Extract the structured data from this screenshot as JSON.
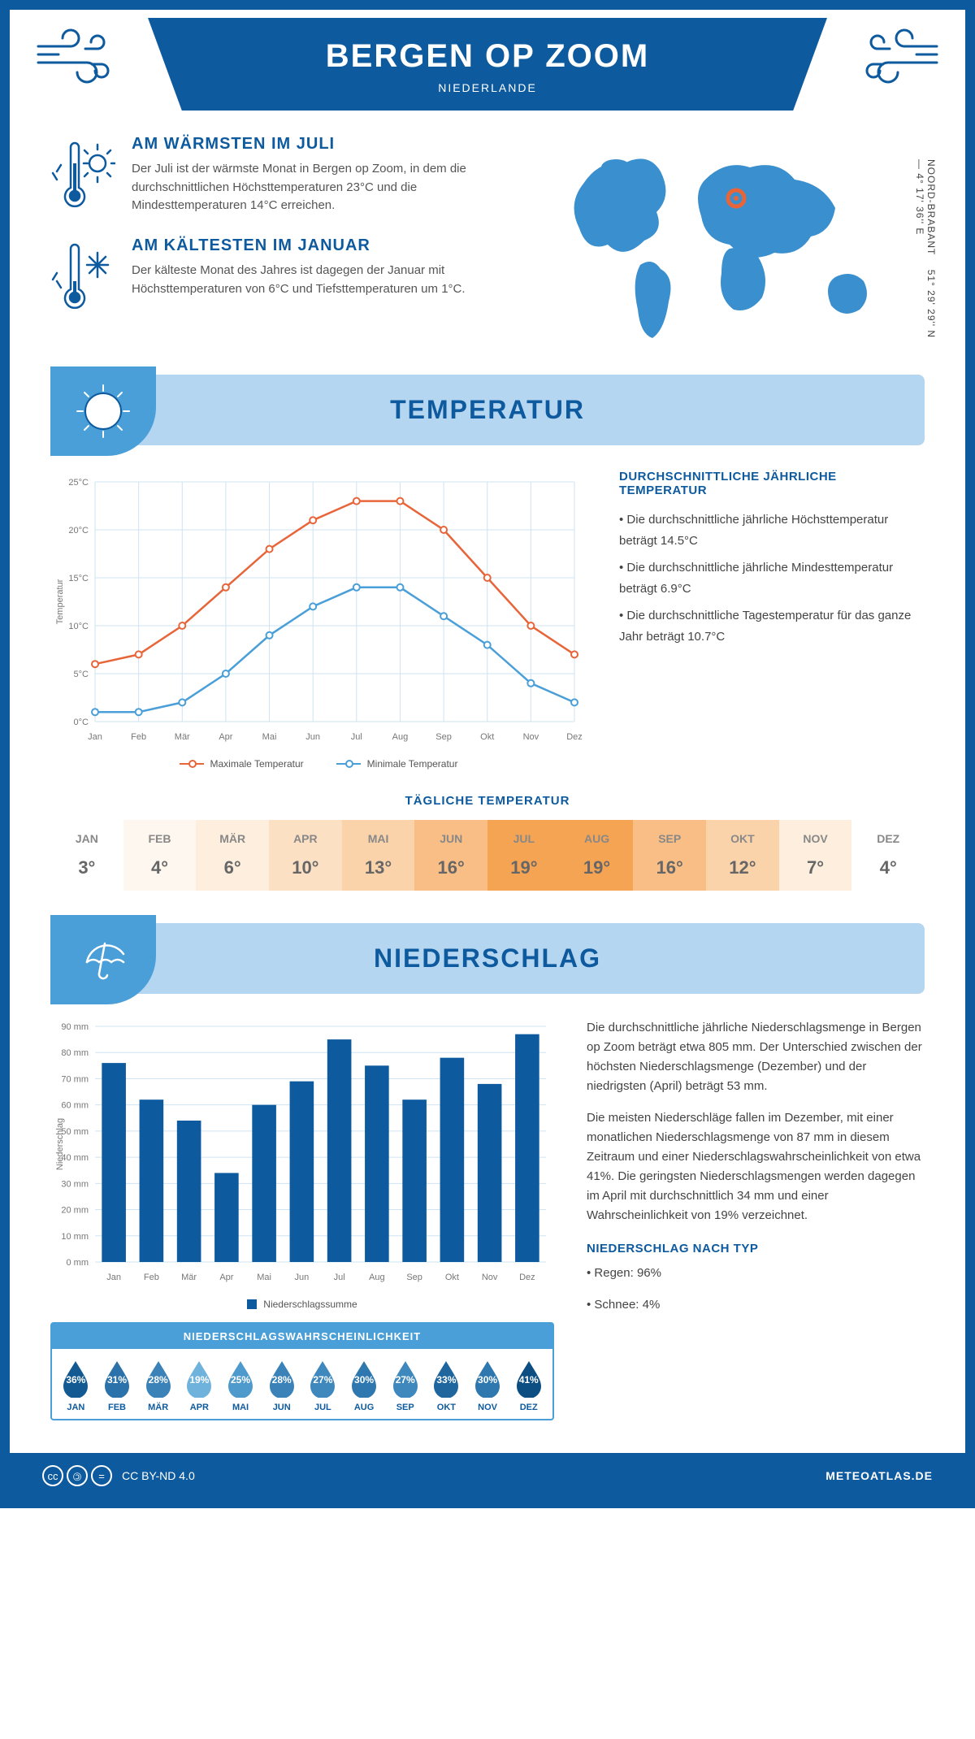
{
  "header": {
    "title": "BERGEN OP ZOOM",
    "subtitle": "NIEDERLANDE"
  },
  "coords": "51° 29' 29'' N — 4° 17' 36'' E",
  "region": "NOORD-BRABANT",
  "facts": {
    "warm": {
      "title": "AM WÄRMSTEN IM JULI",
      "text": "Der Juli ist der wärmste Monat in Bergen op Zoom, in dem die durchschnittlichen Höchsttemperaturen 23°C und die Mindesttemperaturen 14°C erreichen."
    },
    "cold": {
      "title": "AM KÄLTESTEN IM JANUAR",
      "text": "Der kälteste Monat des Jahres ist dagegen der Januar mit Höchsttemperaturen von 6°C und Tiefsttemperaturen um 1°C."
    }
  },
  "sections": {
    "temp": "TEMPERATUR",
    "precip": "NIEDERSCHLAG"
  },
  "tempChart": {
    "type": "line",
    "months": [
      "Jan",
      "Feb",
      "Mär",
      "Apr",
      "Mai",
      "Jun",
      "Jul",
      "Aug",
      "Sep",
      "Okt",
      "Nov",
      "Dez"
    ],
    "max": [
      6,
      7,
      10,
      14,
      18,
      21,
      23,
      23,
      20,
      15,
      10,
      7
    ],
    "min": [
      1,
      1,
      2,
      5,
      9,
      12,
      14,
      14,
      11,
      8,
      4,
      2
    ],
    "ylabel": "Temperatur",
    "ylim": [
      0,
      25
    ],
    "ytick_step": 5,
    "max_color": "#e8653a",
    "min_color": "#4a9fd8",
    "grid_color": "#cfe3f2",
    "legend_max": "Maximale Temperatur",
    "legend_min": "Minimale Temperatur"
  },
  "tempSide": {
    "title": "DURCHSCHNITTLICHE JÄHRLICHE TEMPERATUR",
    "b1": "• Die durchschnittliche jährliche Höchsttemperatur beträgt 14.5°C",
    "b2": "• Die durchschnittliche jährliche Mindesttemperatur beträgt 6.9°C",
    "b3": "• Die durchschnittliche Tagestemperatur für das ganze Jahr beträgt 10.7°C"
  },
  "dailyTemp": {
    "title": "TÄGLICHE TEMPERATUR",
    "months": [
      "JAN",
      "FEB",
      "MÄR",
      "APR",
      "MAI",
      "JUN",
      "JUL",
      "AUG",
      "SEP",
      "OKT",
      "NOV",
      "DEZ"
    ],
    "vals": [
      "3°",
      "4°",
      "6°",
      "10°",
      "13°",
      "16°",
      "19°",
      "19°",
      "16°",
      "12°",
      "7°",
      "4°"
    ],
    "colors": [
      "#ffffff",
      "#fef7ef",
      "#fdeedd",
      "#fce0c4",
      "#fbd3ab",
      "#f9be85",
      "#f5a454",
      "#f5a454",
      "#f9be85",
      "#fbd3ab",
      "#fdeedd",
      "#ffffff"
    ]
  },
  "precipChart": {
    "type": "bar",
    "months": [
      "Jan",
      "Feb",
      "Mär",
      "Apr",
      "Mai",
      "Jun",
      "Jul",
      "Aug",
      "Sep",
      "Okt",
      "Nov",
      "Dez"
    ],
    "values": [
      76,
      62,
      54,
      34,
      60,
      69,
      85,
      75,
      62,
      78,
      68,
      87
    ],
    "ylabel": "Niederschlag",
    "ylim": [
      0,
      90
    ],
    "ytick_step": 10,
    "bar_color": "#0d5a9e",
    "grid_color": "#cfe3f2",
    "legend": "Niederschlagssumme"
  },
  "precipText": {
    "p1": "Die durchschnittliche jährliche Niederschlagsmenge in Bergen op Zoom beträgt etwa 805 mm. Der Unterschied zwischen der höchsten Niederschlagsmenge (Dezember) und der niedrigsten (April) beträgt 53 mm.",
    "p2": "Die meisten Niederschläge fallen im Dezember, mit einer monatlichen Niederschlagsmenge von 87 mm in diesem Zeitraum und einer Niederschlagswahrscheinlichkeit von etwa 41%. Die geringsten Niederschlagsmengen werden dagegen im April mit durchschnittlich 34 mm und einer Wahrscheinlichkeit von 19% verzeichnet.",
    "typeTitle": "NIEDERSCHLAG NACH TYP",
    "type1": "• Regen: 96%",
    "type2": "• Schnee: 4%"
  },
  "probBox": {
    "title": "NIEDERSCHLAGSWAHRSCHEINLICHKEIT",
    "months": [
      "JAN",
      "FEB",
      "MÄR",
      "APR",
      "MAI",
      "JUN",
      "JUL",
      "AUG",
      "SEP",
      "OKT",
      "NOV",
      "DEZ"
    ],
    "pct": [
      "36%",
      "31%",
      "28%",
      "19%",
      "25%",
      "28%",
      "27%",
      "30%",
      "27%",
      "33%",
      "30%",
      "41%"
    ],
    "colors": [
      "#145a92",
      "#2a72a9",
      "#3a82b8",
      "#6fb2dc",
      "#4f9acc",
      "#3a82b8",
      "#3f88be",
      "#2f78af",
      "#3f88be",
      "#1f669e",
      "#2f78af",
      "#0d4e82"
    ]
  },
  "footer": {
    "license": "CC BY-ND 4.0",
    "site": "METEOATLAS.DE"
  }
}
